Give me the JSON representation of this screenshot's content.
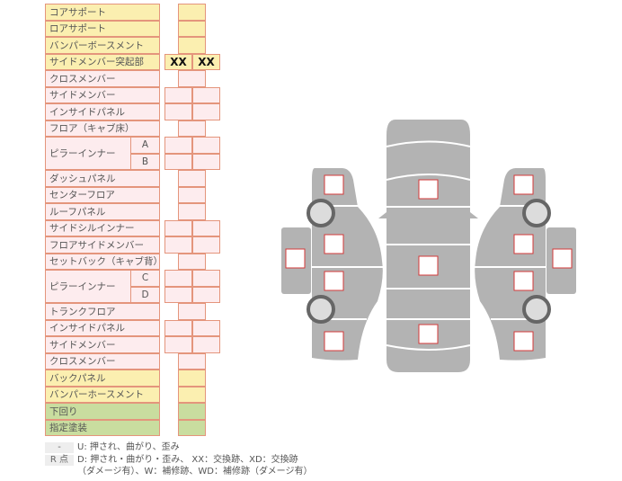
{
  "rows": [
    {
      "label": "コアサポート",
      "color": "yellow",
      "cells": 1
    },
    {
      "label": "ロアサポート",
      "color": "yellow",
      "cells": 1
    },
    {
      "label": "バンパーボースメント",
      "color": "yellow",
      "cells": 1
    },
    {
      "label": "サイドメンバー突起部",
      "color": "yellow",
      "cells": 2,
      "values": [
        "XX",
        "XX"
      ]
    },
    {
      "label": "クロスメンバー",
      "color": "pink",
      "cells": 1
    },
    {
      "label": "サイドメンバー",
      "color": "pink",
      "cells": 2
    },
    {
      "label": "インサイドパネル",
      "color": "pink",
      "cells": 2
    },
    {
      "label": "フロア（キャブ床）",
      "color": "pink",
      "cells": 1
    },
    {
      "label": "ピラーインナー",
      "color": "pink",
      "cells": 2,
      "sub": "A",
      "group_start": true
    },
    {
      "label": "",
      "color": "pink",
      "cells": 2,
      "sub": "B",
      "group_cont": true
    },
    {
      "label": "ダッシュパネル",
      "color": "pink",
      "cells": 1
    },
    {
      "label": "センターフロア",
      "color": "pink",
      "cells": 1
    },
    {
      "label": "ルーフパネル",
      "color": "pink",
      "cells": 1
    },
    {
      "label": "サイドシルインナー",
      "color": "pink",
      "cells": 2
    },
    {
      "label": "フロアサイドメンバー",
      "color": "pink",
      "cells": 2
    },
    {
      "label": "セットバック（キャブ背）",
      "color": "pink",
      "cells": 1
    },
    {
      "label": "ピラーインナー",
      "color": "pink",
      "cells": 2,
      "sub": "C",
      "group_start": true
    },
    {
      "label": "",
      "color": "pink",
      "cells": 2,
      "sub": "D",
      "group_cont": true
    },
    {
      "label": "トランクフロア",
      "color": "pink",
      "cells": 1
    },
    {
      "label": "インサイドパネル",
      "color": "pink",
      "cells": 2
    },
    {
      "label": "サイドメンバー",
      "color": "pink",
      "cells": 2
    },
    {
      "label": "クロスメンバー",
      "color": "pink",
      "cells": 1
    },
    {
      "label": "バックパネル",
      "color": "yellow",
      "cells": 1
    },
    {
      "label": "バンパーホースメント",
      "color": "yellow",
      "cells": 1
    },
    {
      "label": "下回り",
      "color": "green",
      "cells": 1
    },
    {
      "label": "指定塗装",
      "color": "green",
      "cells": 1
    }
  ],
  "legend": [
    {
      "key": "-",
      "text": "U: 押され、曲がり、歪み"
    },
    {
      "key": "R 点",
      "text": "D: 押され・曲がり・歪み、 XX：交換跡、XD：交換跡",
      "text2": "（ダメージ有）、W：補修跡、WD：補修跡（ダメージ有）"
    }
  ],
  "colors": {
    "yellow": "#fbefb0",
    "pink": "#fdecee",
    "green": "#c9dd9f",
    "border": "#e4957c",
    "car": "#b3b3b3",
    "marker": "#d33a3a"
  },
  "diagram": {
    "icons": [
      "car-side-view-left",
      "car-top-view",
      "car-side-view-right",
      "wheel-icon"
    ]
  }
}
